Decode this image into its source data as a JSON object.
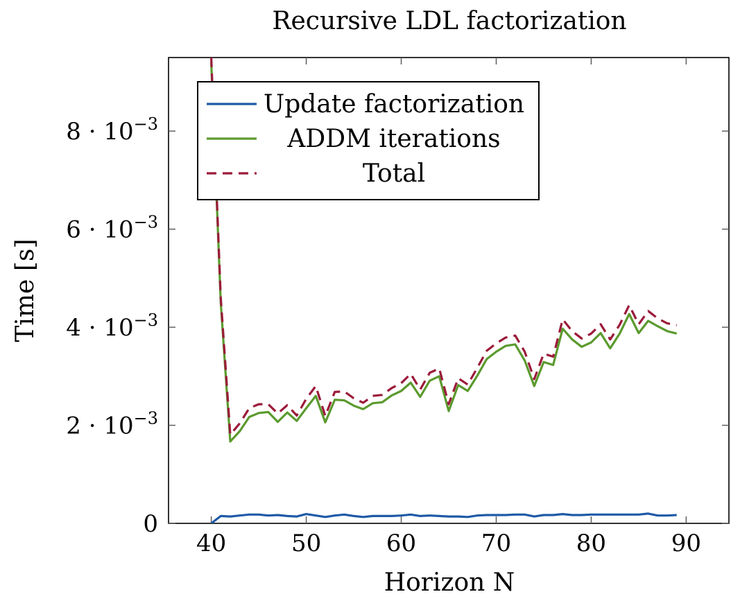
{
  "chart_data": {
    "type": "line",
    "title": "Recursive LDL factorization",
    "xlabel": "Horizon N",
    "ylabel": "Time [s]",
    "xlim": [
      35.5,
      94.5
    ],
    "ylim": [
      0,
      0.0095
    ],
    "grid": false,
    "legend_position": "top-left",
    "x_ticks": [
      {
        "value": 40,
        "label": "40"
      },
      {
        "value": 50,
        "label": "50"
      },
      {
        "value": 60,
        "label": "60"
      },
      {
        "value": 70,
        "label": "70"
      },
      {
        "value": 80,
        "label": "80"
      },
      {
        "value": 90,
        "label": "90"
      }
    ],
    "y_ticks": [
      {
        "value": 0,
        "label": "0"
      },
      {
        "value": 0.002,
        "mantissa": "2",
        "exponent": "−3"
      },
      {
        "value": 0.004,
        "mantissa": "4",
        "exponent": "−3"
      },
      {
        "value": 0.006,
        "mantissa": "6",
        "exponent": "−3"
      },
      {
        "value": 0.008,
        "mantissa": "8",
        "exponent": "−3"
      }
    ],
    "x": [
      40,
      41,
      42,
      43,
      44,
      45,
      46,
      47,
      48,
      49,
      50,
      51,
      52,
      53,
      54,
      55,
      56,
      57,
      58,
      59,
      60,
      61,
      62,
      63,
      64,
      65,
      66,
      67,
      68,
      69,
      70,
      71,
      72,
      73,
      74,
      75,
      76,
      77,
      78,
      79,
      80,
      81,
      82,
      83,
      84,
      85,
      86,
      87,
      88,
      89
    ],
    "series": [
      {
        "name": "Update factorization",
        "color": "#1f5aa6",
        "dash": "solid",
        "values": [
          0.0,
          0.00015,
          0.00014,
          0.00016,
          0.00018,
          0.00018,
          0.00016,
          0.00017,
          0.00015,
          0.00014,
          0.00019,
          0.00016,
          0.00013,
          0.00016,
          0.00018,
          0.00015,
          0.00013,
          0.00015,
          0.00015,
          0.00015,
          0.00016,
          0.00018,
          0.00015,
          0.00016,
          0.00015,
          0.00014,
          0.00014,
          0.00013,
          0.00016,
          0.00017,
          0.00017,
          0.00017,
          0.00018,
          0.00018,
          0.00014,
          0.00017,
          0.00017,
          0.00019,
          0.00017,
          0.00017,
          0.00018,
          0.00018,
          0.00018,
          0.00018,
          0.00018,
          0.00018,
          0.0002,
          0.00016,
          0.00016,
          0.00017
        ]
      },
      {
        "name": "ADDM iterations",
        "color": "#5b9a2e",
        "dash": "solid",
        "values": [
          0.0094,
          0.0045,
          0.00167,
          0.00188,
          0.00217,
          0.00225,
          0.00227,
          0.00207,
          0.00226,
          0.00209,
          0.00235,
          0.0026,
          0.00206,
          0.00252,
          0.00251,
          0.0024,
          0.00233,
          0.00245,
          0.00247,
          0.00261,
          0.0027,
          0.00287,
          0.00258,
          0.00291,
          0.003,
          0.00229,
          0.00282,
          0.0027,
          0.00301,
          0.00335,
          0.0035,
          0.00362,
          0.00365,
          0.00332,
          0.0028,
          0.00329,
          0.00323,
          0.00397,
          0.00375,
          0.0036,
          0.00369,
          0.00388,
          0.00357,
          0.00387,
          0.00427,
          0.00388,
          0.00413,
          0.00402,
          0.00392,
          0.00387
        ]
      },
      {
        "name": "Total",
        "color": "#9b1b3a",
        "dash": "dashed",
        "values": [
          0.0095,
          0.0046,
          0.00181,
          0.00204,
          0.00235,
          0.00243,
          0.00243,
          0.00224,
          0.00241,
          0.0022,
          0.00254,
          0.0028,
          0.00219,
          0.00268,
          0.00269,
          0.00255,
          0.00246,
          0.0026,
          0.00262,
          0.00276,
          0.00286,
          0.00305,
          0.00273,
          0.00307,
          0.00316,
          0.00243,
          0.00296,
          0.00283,
          0.00317,
          0.00352,
          0.00367,
          0.00379,
          0.00383,
          0.0035,
          0.00294,
          0.00346,
          0.0034,
          0.00416,
          0.00392,
          0.00377,
          0.00387,
          0.00406,
          0.00375,
          0.00405,
          0.00445,
          0.00406,
          0.00433,
          0.00418,
          0.00408,
          0.00404
        ]
      }
    ]
  }
}
